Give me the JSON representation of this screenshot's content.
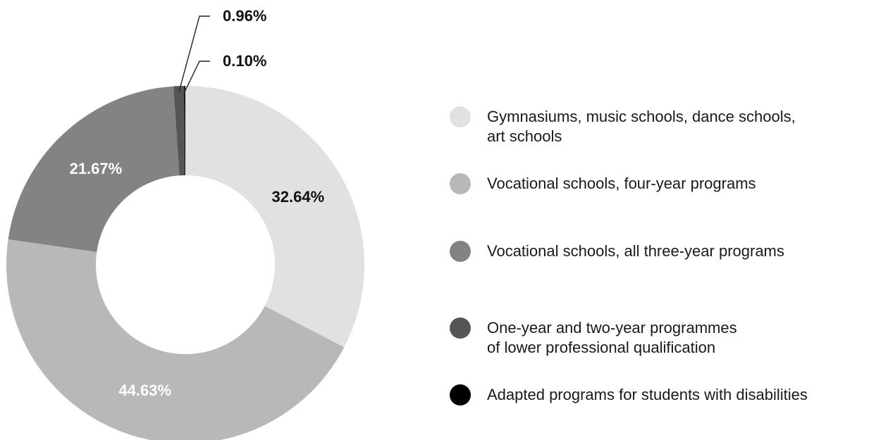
{
  "chart_data": {
    "type": "pie",
    "variant": "donut",
    "title": "",
    "slices": [
      {
        "label": "Gymnasiums, music schools, dance schools, art schools",
        "legend_lines": [
          "Gymnasiums, music schools, dance schools,",
          "art schools"
        ],
        "value": 32.64,
        "value_label": "32.64%",
        "color": "#e1e1e1",
        "label_color": "#111111"
      },
      {
        "label": "Vocational schools, four-year programs",
        "legend_lines": [
          "Vocational schools, four-year programs"
        ],
        "value": 44.63,
        "value_label": "44.63%",
        "color": "#b8b8b8",
        "label_color": "#ffffff"
      },
      {
        "label": "Vocational schools, all three-year programs",
        "legend_lines": [
          "Vocational schools, all three-year programs"
        ],
        "value": 21.67,
        "value_label": "21.67%",
        "color": "#838383",
        "label_color": "#ffffff"
      },
      {
        "label": "One-year and two-year programmes of lower professional qualification",
        "legend_lines": [
          "One-year and two-year programmes",
          "of lower professional qualification"
        ],
        "value": 0.96,
        "value_label": "0.96%",
        "color": "#555555",
        "label_color": "#111111"
      },
      {
        "label": "Adapted programs for students with disabilities",
        "legend_lines": [
          "Adapted programs for students with disabilities"
        ],
        "value": 0.1,
        "value_label": "0.10%",
        "color": "#000000",
        "label_color": "#111111"
      }
    ],
    "legend_position": "right",
    "start_angle": "12 o'clock",
    "direction": "clockwise"
  }
}
